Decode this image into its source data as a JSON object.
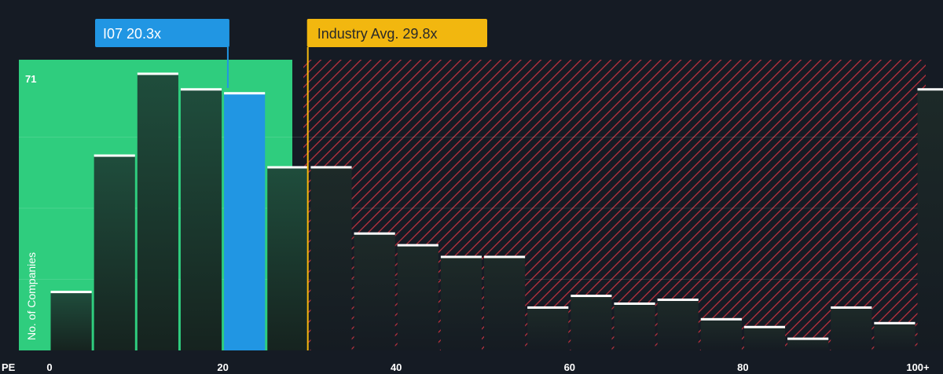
{
  "chart_data": {
    "type": "bar",
    "xlabel": "PE",
    "ylabel": "No. of Companies",
    "x_ticks": [
      "0",
      "20",
      "40",
      "60",
      "80",
      "100+"
    ],
    "y_max_label": "71",
    "ylim": [
      0,
      73
    ],
    "xlim": [
      0,
      103
    ],
    "bin_width": 5,
    "bins": [
      {
        "x": 0,
        "value": 15
      },
      {
        "x": 5,
        "value": 50
      },
      {
        "x": 10,
        "value": 71
      },
      {
        "x": 15,
        "value": 67
      },
      {
        "x": 20,
        "value": 66
      },
      {
        "x": 25,
        "value": 47
      },
      {
        "x": 30,
        "value": 47
      },
      {
        "x": 35,
        "value": 30
      },
      {
        "x": 40,
        "value": 27
      },
      {
        "x": 45,
        "value": 24
      },
      {
        "x": 50,
        "value": 24
      },
      {
        "x": 55,
        "value": 11
      },
      {
        "x": 60,
        "value": 14
      },
      {
        "x": 65,
        "value": 12
      },
      {
        "x": 70,
        "value": 13
      },
      {
        "x": 75,
        "value": 8
      },
      {
        "x": 80,
        "value": 6
      },
      {
        "x": 85,
        "value": 3
      },
      {
        "x": 90,
        "value": 11
      },
      {
        "x": 95,
        "value": 7
      },
      {
        "x": 100,
        "value": 67
      }
    ],
    "highlight_bin": 20,
    "company": {
      "label": "I07 20.3x",
      "value": 20.3
    },
    "industry": {
      "label": "Industry Avg. 29.8x",
      "value": 29.8
    },
    "colors": {
      "background": "#151b24",
      "green_zone": "#2fcd7e",
      "bar_dark": "#1d4a3a",
      "highlight_bar": "#2196e3",
      "red_hatch": "#c4323f",
      "company_callout": "#2196e3",
      "industry_callout": "#f2b70f"
    }
  }
}
